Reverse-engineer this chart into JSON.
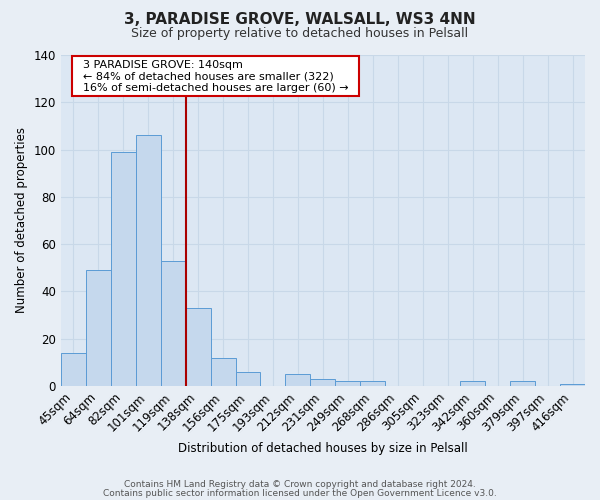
{
  "title": "3, PARADISE GROVE, WALSALL, WS3 4NN",
  "subtitle": "Size of property relative to detached houses in Pelsall",
  "xlabel": "Distribution of detached houses by size in Pelsall",
  "ylabel": "Number of detached properties",
  "bin_labels": [
    "45sqm",
    "64sqm",
    "82sqm",
    "101sqm",
    "119sqm",
    "138sqm",
    "156sqm",
    "175sqm",
    "193sqm",
    "212sqm",
    "231sqm",
    "249sqm",
    "268sqm",
    "286sqm",
    "305sqm",
    "323sqm",
    "342sqm",
    "360sqm",
    "379sqm",
    "397sqm",
    "416sqm"
  ],
  "bin_values": [
    14,
    49,
    99,
    106,
    53,
    33,
    12,
    6,
    0,
    5,
    3,
    2,
    2,
    0,
    0,
    0,
    2,
    0,
    2,
    0,
    1
  ],
  "bar_color": "#c5d8ed",
  "bar_edge_color": "#5b9bd5",
  "vline_color": "#aa0000",
  "annotation_title": "3 PARADISE GROVE: 140sqm",
  "annotation_line1": "← 84% of detached houses are smaller (322)",
  "annotation_line2": "16% of semi-detached houses are larger (60) →",
  "annotation_box_color": "#ffffff",
  "annotation_box_edge": "#cc0000",
  "ylim": [
    0,
    140
  ],
  "yticks": [
    0,
    20,
    40,
    60,
    80,
    100,
    120,
    140
  ],
  "background_color": "#e8eef5",
  "plot_background": "#dce7f3",
  "grid_color": "#c8d8e8",
  "footer_line1": "Contains HM Land Registry data © Crown copyright and database right 2024.",
  "footer_line2": "Contains public sector information licensed under the Open Government Licence v3.0.",
  "vline_bin_index": 5
}
